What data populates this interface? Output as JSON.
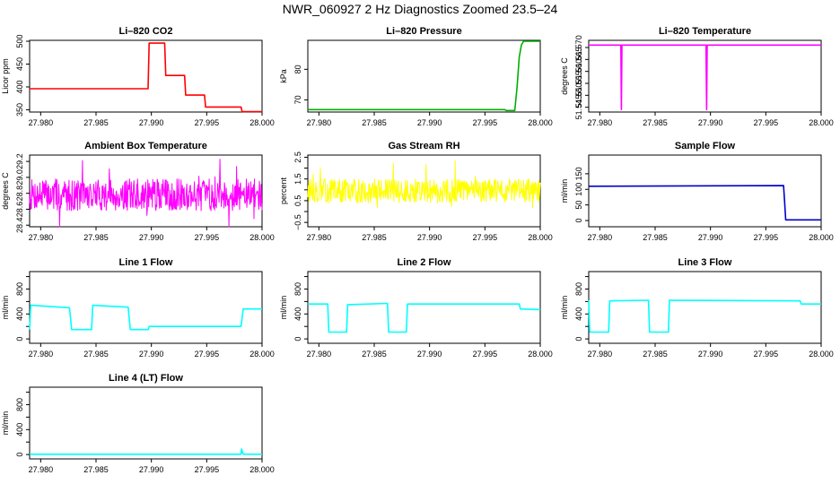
{
  "page": {
    "title": "NWR_060927  2 Hz Diagnostics Zoomed 23.5–24"
  },
  "chart_data": [
    {
      "id": "co2",
      "type": "line",
      "title": "Li–820 CO2",
      "ylabel": "Licor ppm",
      "color": "#ff0000",
      "xlim": [
        27.979,
        28.0
      ],
      "xticks": [
        "27.980",
        "27.985",
        "27.990",
        "27.995",
        "28.000"
      ],
      "ylim": [
        345,
        502
      ],
      "yticks": [
        350,
        400,
        450,
        500
      ],
      "x": [
        27.979,
        27.9897,
        27.9898,
        27.9912,
        27.9913,
        27.993,
        27.9931,
        27.9948,
        27.9949,
        27.9981,
        27.9982,
        28.0
      ],
      "y": [
        396,
        396,
        496,
        496,
        425,
        425,
        382,
        382,
        356,
        356,
        346,
        346
      ]
    },
    {
      "id": "pressure",
      "type": "line",
      "title": "Li–820 Pressure",
      "ylabel": "kPa",
      "color": "#00b000",
      "xlim": [
        27.979,
        28.0
      ],
      "xticks": [
        "27.980",
        "27.985",
        "27.990",
        "27.995",
        "28.000"
      ],
      "ylim": [
        66,
        89.5
      ],
      "yticks": [
        70,
        80
      ],
      "x": [
        27.979,
        27.9968,
        27.9969,
        27.9977,
        27.9979,
        27.9981,
        27.9983,
        27.9985,
        28.0
      ],
      "y": [
        66.8,
        66.8,
        66.5,
        66.5,
        74,
        84,
        88,
        89.2,
        89.2
      ]
    },
    {
      "id": "temp",
      "type": "line",
      "title": "Li–820 Temperature",
      "ylabel": "degrees C",
      "color": "#ff00ff",
      "xlim": [
        27.979,
        28.0
      ],
      "xticks": [
        "27.980",
        "27.985",
        "27.990",
        "27.995",
        "28.000"
      ],
      "ylim": [
        51.543,
        51.573
      ],
      "yticks": [
        "51.545",
        "51.550",
        "51.555",
        "51.560",
        "51.565",
        "51.570"
      ],
      "x": [
        27.979,
        27.9819,
        27.98195,
        27.982,
        27.9896,
        27.98965,
        27.9897,
        28.0
      ],
      "y": [
        51.571,
        51.571,
        51.544,
        51.571,
        51.571,
        51.544,
        51.571,
        51.571
      ]
    },
    {
      "id": "ambient",
      "type": "line",
      "title": "Ambient Box Temperature",
      "ylabel": "degrees C",
      "color": "#ff00ff",
      "xlim": [
        27.979,
        28.0
      ],
      "xticks": [
        "27.980",
        "27.985",
        "27.990",
        "27.995",
        "28.000"
      ],
      "ylim": [
        28.38,
        29.28
      ],
      "yticks": [
        "28.4",
        "28.6",
        "28.8",
        "29.0",
        "29.2"
      ],
      "noise": {
        "center": 28.78,
        "amp": 0.2,
        "spike": 0.45,
        "seed": 7
      }
    },
    {
      "id": "rh",
      "type": "line",
      "title": "Gas Stream RH",
      "ylabel": "percent",
      "color": "#ffff00",
      "xlim": [
        27.979,
        28.0
      ],
      "xticks": [
        "27.980",
        "27.985",
        "27.990",
        "27.995",
        "28.000"
      ],
      "ylim": [
        -0.7,
        2.6
      ],
      "yticks": [
        "−0.5",
        "0.5",
        "1.5",
        "2.5"
      ],
      "yticks_values": [
        -0.5,
        0.5,
        1.5,
        2.5
      ],
      "yticks_minor": [
        "0.0",
        "1.0",
        "2.0"
      ],
      "yticks_minor_values": [
        0.0,
        1.0,
        2.0
      ],
      "noise": {
        "center": 0.95,
        "amp": 0.55,
        "spike": 1.4,
        "seed": 13
      }
    },
    {
      "id": "sample",
      "type": "line",
      "title": "Sample Flow",
      "ylabel": "ml/min",
      "color": "#0000cc",
      "xlim": [
        27.979,
        28.0
      ],
      "xticks": [
        "27.980",
        "27.985",
        "27.990",
        "27.995",
        "28.000"
      ],
      "ylim": [
        -20,
        210
      ],
      "yticks": [
        0,
        50,
        100,
        150
      ],
      "x": [
        27.979,
        27.9966,
        27.9967,
        27.9968,
        28.0
      ],
      "y": [
        110,
        112,
        60,
        2,
        2
      ]
    },
    {
      "id": "line1",
      "type": "line",
      "title": "Line 1 Flow",
      "ylabel": "ml/min",
      "color": "#00ffff",
      "xlim": [
        27.979,
        28.0
      ],
      "xticks": [
        "27.980",
        "27.985",
        "27.990",
        "27.995",
        "28.000"
      ],
      "ylim": [
        -70,
        1080
      ],
      "yticks": [
        0,
        400,
        800
      ],
      "yticks_minor": [
        200,
        600,
        1000
      ],
      "x": [
        27.979,
        27.9791,
        27.9826,
        27.9828,
        27.9846,
        27.9847,
        27.9879,
        27.9881,
        27.9897,
        27.9898,
        27.9981,
        27.9983,
        28.0
      ],
      "y": [
        150,
        540,
        500,
        150,
        150,
        540,
        510,
        150,
        150,
        200,
        200,
        480,
        480
      ]
    },
    {
      "id": "line2",
      "type": "line",
      "title": "Line 2 Flow",
      "ylabel": "ml/min",
      "color": "#00ffff",
      "xlim": [
        27.979,
        28.0
      ],
      "xticks": [
        "27.980",
        "27.985",
        "27.990",
        "27.995",
        "28.000"
      ],
      "ylim": [
        -70,
        1080
      ],
      "yticks": [
        0,
        400,
        800
      ],
      "yticks_minor": [
        200,
        600,
        1000
      ],
      "x": [
        27.979,
        27.9808,
        27.9809,
        27.9825,
        27.9826,
        27.9862,
        27.9863,
        27.9879,
        27.988,
        27.9981,
        27.9982,
        28.0
      ],
      "y": [
        560,
        560,
        110,
        110,
        550,
        570,
        110,
        110,
        560,
        560,
        480,
        470
      ]
    },
    {
      "id": "line3",
      "type": "line",
      "title": "Line 3 Flow",
      "ylabel": "ml/min",
      "color": "#00ffff",
      "xlim": [
        27.979,
        28.0
      ],
      "xticks": [
        "27.980",
        "27.985",
        "27.990",
        "27.995",
        "28.000"
      ],
      "ylim": [
        -70,
        1080
      ],
      "yticks": [
        0,
        400,
        800
      ],
      "yticks_minor": [
        200,
        600,
        1000
      ],
      "x": [
        27.979,
        27.9791,
        27.9793,
        27.9808,
        27.9809,
        27.9844,
        27.9845,
        27.9862,
        27.9863,
        27.9981,
        27.9982,
        28.0
      ],
      "y": [
        620,
        110,
        110,
        110,
        610,
        620,
        110,
        110,
        620,
        610,
        560,
        560
      ]
    },
    {
      "id": "line4",
      "type": "line",
      "title": "Line 4 (LT) Flow",
      "ylabel": "ml/min",
      "color": "#00ffff",
      "xlim": [
        27.979,
        28.0
      ],
      "xticks": [
        "27.980",
        "27.985",
        "27.990",
        "27.995",
        "28.000"
      ],
      "ylim": [
        -70,
        1080
      ],
      "yticks": [
        0,
        400,
        800
      ],
      "yticks_minor": [
        200,
        600,
        1000
      ],
      "x": [
        27.979,
        27.9981,
        27.99815,
        27.9983,
        28.0
      ],
      "y": [
        5,
        5,
        90,
        5,
        5
      ]
    }
  ]
}
